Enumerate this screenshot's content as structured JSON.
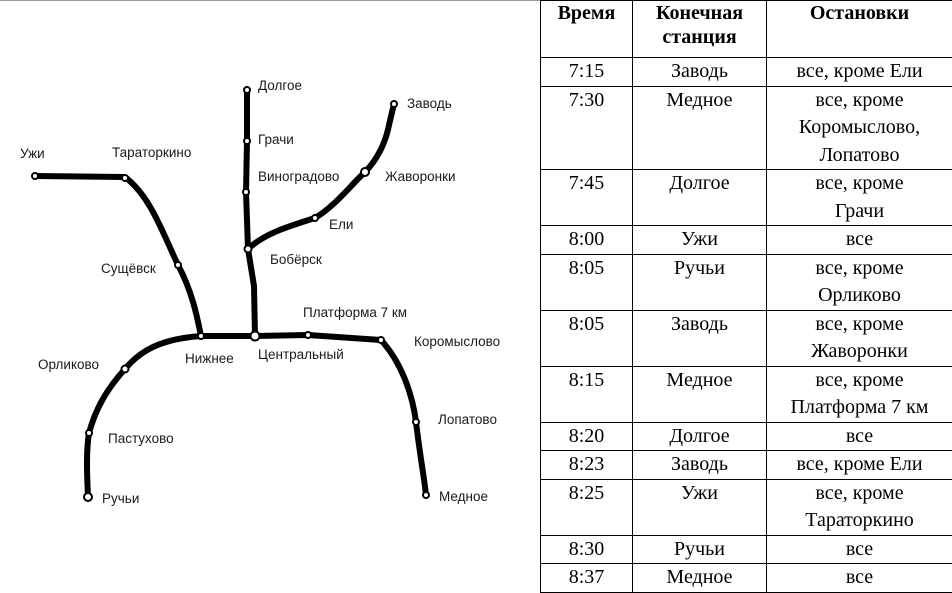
{
  "map": {
    "stations": {
      "dolgoe": "Долгое",
      "grachi": "Грачи",
      "vinogradovo": "Виноградово",
      "bobersk": "Бобёрск",
      "eli": "Ели",
      "zhavoronki": "Жаворонки",
      "zavod": "Заводь",
      "uzhi": "Ужи",
      "taratorkino": "Тараторкино",
      "sushchyovsk": "Сущёвск",
      "nizhnee": "Нижнее",
      "centralny": "Центральный",
      "platforma7": "Платформа 7 км",
      "koromyslovo": "Коромыслово",
      "lopatovo": "Лопатово",
      "mednoe": "Медное",
      "orlikovo": "Орликово",
      "pastukhovo": "Пастухово",
      "ruchyi": "Ручьи"
    }
  },
  "table": {
    "headers": {
      "time": "Время",
      "terminal_line1": "Конечная",
      "terminal_line2": "станция",
      "stops": "Остановки"
    },
    "rows": [
      {
        "time": "7:15",
        "terminal": "Заводь",
        "stops": [
          "все, кроме Ели"
        ]
      },
      {
        "time": "7:30",
        "terminal": "Медное",
        "stops": [
          "все, кроме",
          "Коромыслово,",
          "Лопатово"
        ]
      },
      {
        "time": "7:45",
        "terminal": "Долгое",
        "stops": [
          "все, кроме",
          "Грачи"
        ]
      },
      {
        "time": "8:00",
        "terminal": "Ужи",
        "stops": [
          "все"
        ]
      },
      {
        "time": "8:05",
        "terminal": "Ручьи",
        "stops": [
          "все, кроме",
          "Орликово"
        ]
      },
      {
        "time": "8:05",
        "terminal": "Заводь",
        "stops": [
          "все, кроме",
          "Жаворонки"
        ]
      },
      {
        "time": "8:15",
        "terminal": "Медное",
        "stops": [
          "все, кроме",
          "Платформа 7 км"
        ]
      },
      {
        "time": "8:20",
        "terminal": "Долгое",
        "stops": [
          "все"
        ]
      },
      {
        "time": "8:23",
        "terminal": "Заводь",
        "stops": [
          "все, кроме Ели"
        ]
      },
      {
        "time": "8:25",
        "terminal": "Ужи",
        "stops": [
          "все, кроме",
          "Тараторкино"
        ]
      },
      {
        "time": "8:30",
        "terminal": "Ручьи",
        "stops": [
          "все"
        ]
      },
      {
        "time": "8:37",
        "terminal": "Медное",
        "stops": [
          "все"
        ]
      }
    ]
  }
}
